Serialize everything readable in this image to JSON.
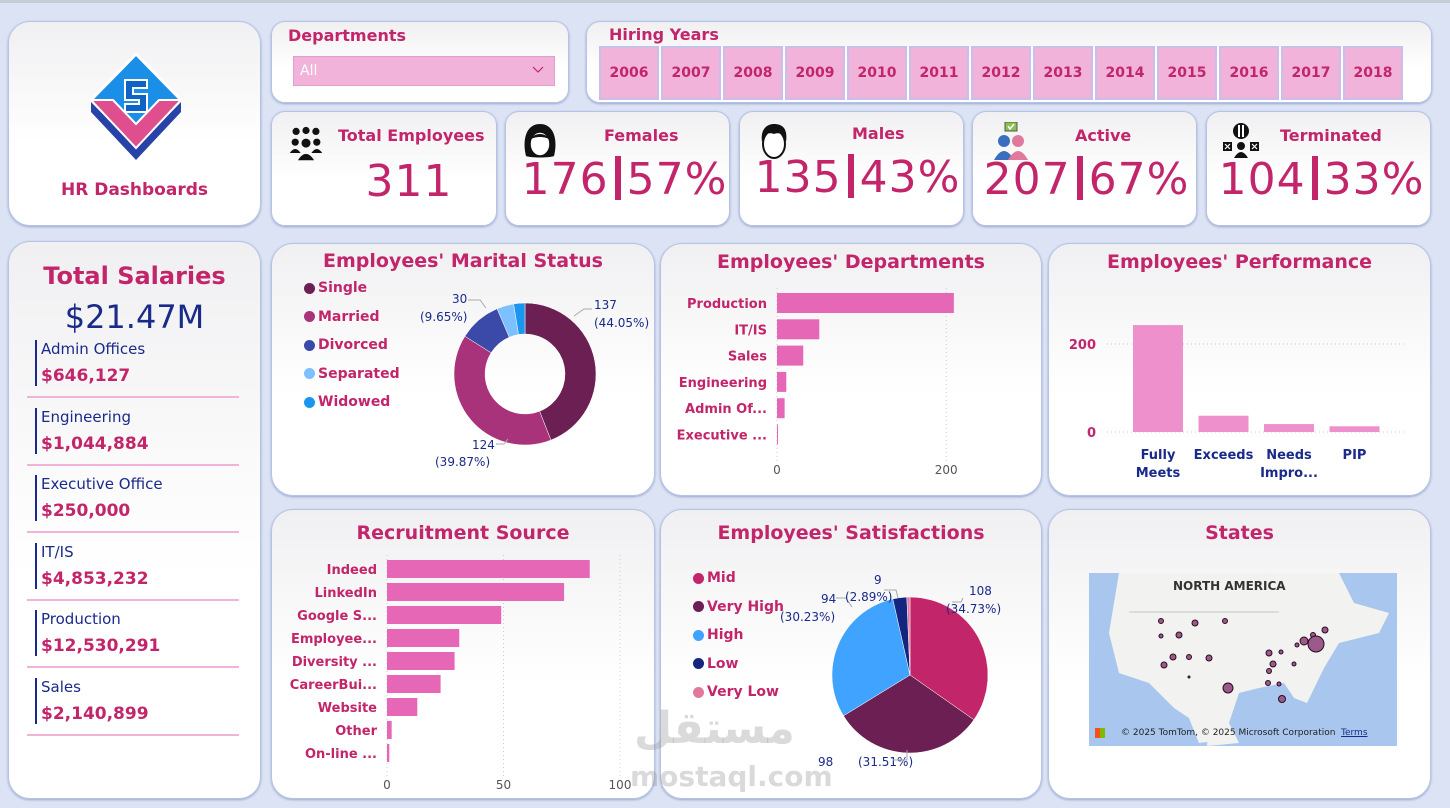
{
  "app": {
    "title": "HR Dashboards"
  },
  "colors": {
    "accent": "#c2256a",
    "navy": "#1a2a8a",
    "bar": "#e667b6",
    "slicer": "#f2b3da",
    "background": "#dbe3f4"
  },
  "filters": {
    "departments": {
      "label": "Departments",
      "selected": "All"
    },
    "hiring_years": {
      "label": "Hiring Years",
      "options": [
        "2006",
        "2007",
        "2008",
        "2009",
        "2010",
        "2011",
        "2012",
        "2013",
        "2014",
        "2015",
        "2016",
        "2017",
        "2018"
      ]
    }
  },
  "kpis": {
    "total": {
      "label": "Total Employees",
      "value": "311",
      "icon": "people-group-icon"
    },
    "females": {
      "label": "Females",
      "count": "176",
      "percent": "57%",
      "icon": "female-avatar-icon"
    },
    "males": {
      "label": "Males",
      "count": "135",
      "percent": "43%",
      "icon": "male-avatar-icon"
    },
    "active": {
      "label": "Active",
      "count": "207",
      "percent": "67%",
      "icon": "active-users-icon"
    },
    "terminated": {
      "label": "Terminated",
      "count": "104",
      "percent": "33%",
      "icon": "terminated-users-icon"
    }
  },
  "salaries": {
    "title": "Total Salaries",
    "total": "$21.47M",
    "items": [
      {
        "name": "Admin Offices",
        "value": "$646,127"
      },
      {
        "name": "Engineering",
        "value": "$1,044,884"
      },
      {
        "name": "Executive Office",
        "value": "$250,000"
      },
      {
        "name": "IT/IS",
        "value": "$4,853,232"
      },
      {
        "name": "Production",
        "value": "$12,530,291"
      },
      {
        "name": "Sales",
        "value": "$2,140,899"
      }
    ]
  },
  "chart_data": [
    {
      "id": "marital",
      "type": "pie",
      "title": "Employees' Marital Status",
      "donut": true,
      "legend": "left",
      "categories": [
        "Single",
        "Married",
        "Divorced",
        "Separated",
        "Widowed"
      ],
      "values": [
        137,
        124,
        30,
        12,
        8
      ],
      "colors": [
        "#6b1f52",
        "#a8337a",
        "#3b4aa8",
        "#7cc0ff",
        "#1b96f0"
      ],
      "labels": [
        {
          "category": "Single",
          "value": "137",
          "percent": "(44.05%)"
        },
        {
          "category": "Married",
          "value": "124",
          "percent": "(39.87%)"
        },
        {
          "category": "Divorced",
          "value": "30",
          "percent": "(9.65%)"
        }
      ]
    },
    {
      "id": "departments",
      "type": "bar",
      "orientation": "horizontal",
      "title": "Employees' Departments",
      "categories": [
        "Production",
        "IT/IS",
        "Sales",
        "Engineering",
        "Admin Of...",
        "Executive ..."
      ],
      "values": [
        209,
        50,
        31,
        11,
        9,
        1
      ],
      "xlim": [
        0,
        260
      ],
      "xticks": [
        0,
        200
      ],
      "grid": true
    },
    {
      "id": "performance",
      "type": "bar",
      "orientation": "vertical",
      "title": "Employees' Performance",
      "categories": [
        "Fully Meets",
        "Exceeds",
        "Needs Impro...",
        "PIP"
      ],
      "values": [
        243,
        37,
        18,
        13
      ],
      "ylim": [
        0,
        250
      ],
      "yticks": [
        0,
        200
      ],
      "grid": true
    },
    {
      "id": "recruitment",
      "type": "bar",
      "orientation": "horizontal",
      "title": "Recruitment Source",
      "categories": [
        "Indeed",
        "LinkedIn",
        "Google S...",
        "Employee...",
        "Diversity ...",
        "CareerBui...",
        "Website",
        "Other",
        "On-line ..."
      ],
      "values": [
        87,
        76,
        49,
        31,
        29,
        23,
        13,
        2,
        1
      ],
      "xlim": [
        0,
        100
      ],
      "xticks": [
        0,
        50,
        100
      ],
      "grid": true
    },
    {
      "id": "satisfaction",
      "type": "pie",
      "title": "Employees' Satisfactions",
      "donut": false,
      "legend": "left",
      "categories": [
        "Mid",
        "Very High",
        "High",
        "Low",
        "Very Low"
      ],
      "values": [
        108,
        98,
        94,
        9,
        2
      ],
      "colors": [
        "#c2256a",
        "#6b1f52",
        "#3fa3ff",
        "#142580",
        "#e07a9c"
      ],
      "labels": [
        {
          "category": "Mid",
          "value": "108",
          "percent": "(34.73%)"
        },
        {
          "category": "Very High",
          "value": "98",
          "percent": "(31.51%)"
        },
        {
          "category": "High",
          "value": "94",
          "percent": "(30.23%)"
        },
        {
          "category": "Low",
          "value": "9",
          "percent": "(2.89%)"
        }
      ]
    }
  ],
  "map": {
    "title": "States",
    "region_label": "NORTH AMERICA",
    "attribution": "© 2025 TomTom, © 2025 Microsoft Corporation",
    "terms_link": "Terms"
  },
  "watermark": {
    "arabic": "مستقل",
    "latin": "mostaql.com"
  }
}
